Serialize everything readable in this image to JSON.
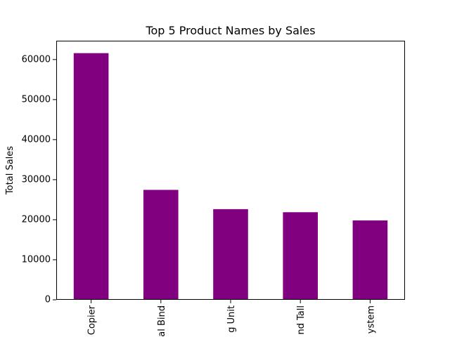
{
  "chart_data": {
    "type": "bar",
    "title": "Top 5 Product Names by Sales",
    "xlabel": "",
    "ylabel": "Total Sales",
    "categories": [
      "Copier",
      "al Bind",
      "g Unit",
      "nd Tall",
      "ystem"
    ],
    "values": [
      61600,
      27450,
      22640,
      21870,
      19820
    ],
    "ylim": [
      0,
      64700
    ],
    "yticks": [
      0,
      10000,
      20000,
      30000,
      40000,
      50000,
      60000
    ],
    "ytick_labels": [
      "0",
      "10000",
      "20000",
      "30000",
      "40000",
      "50000",
      "60000"
    ],
    "grid": false,
    "legend": "none",
    "bar_color": "#800080"
  }
}
